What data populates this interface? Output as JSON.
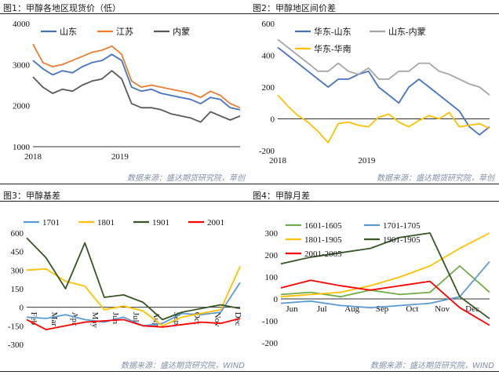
{
  "charts": [
    {
      "title": "图1：甲醇各地区现货价（低）",
      "source": "数据来源：盛达期货研究院，草创"
    },
    {
      "title": "图2：甲醇地区间价差",
      "source": "数据来源：盛达期货研究院，草创"
    },
    {
      "title": "图3：甲醇基差",
      "source": "数据来源：盛达期货研究院，WIND"
    },
    {
      "title": "图4：甲醇月差",
      "source": "数据来源：盛达期货研究院，WIND"
    }
  ],
  "chart_data": [
    {
      "type": "line",
      "title": "图1：甲醇各地区现货价（低）",
      "x_tick_labels": [
        "2018",
        "2019"
      ],
      "ylim": [
        1000,
        4000
      ],
      "y_ticks": [
        1000,
        2000,
        3000,
        4000
      ],
      "legend_position": "top",
      "grid": false,
      "x": [
        0,
        1,
        2,
        3,
        4,
        5,
        6,
        7,
        8,
        9,
        10,
        11,
        12,
        13,
        14,
        15,
        16,
        17,
        18,
        19,
        20,
        21
      ],
      "series": [
        {
          "name": "山东",
          "color": "#4472C4",
          "values": [
            3100,
            2900,
            2750,
            2850,
            2800,
            2950,
            3050,
            3100,
            3250,
            3100,
            2450,
            2350,
            2400,
            2300,
            2250,
            2200,
            2150,
            2050,
            2200,
            2150,
            1950,
            1900
          ]
        },
        {
          "name": "江苏",
          "color": "#ED7D31",
          "values": [
            3500,
            3050,
            2950,
            3000,
            3100,
            3200,
            3300,
            3350,
            3450,
            3250,
            2600,
            2450,
            2500,
            2450,
            2400,
            2350,
            2300,
            2200,
            2350,
            2250,
            2050,
            1950
          ]
        },
        {
          "name": "内蒙",
          "color": "#595959",
          "values": [
            2700,
            2450,
            2300,
            2400,
            2350,
            2500,
            2600,
            2650,
            2850,
            2650,
            2050,
            1950,
            1950,
            1900,
            1800,
            1750,
            1700,
            1600,
            1850,
            1750,
            1650,
            1750
          ]
        }
      ]
    },
    {
      "type": "line",
      "title": "图2：甲醇地区间价差",
      "x_tick_labels": [
        "2018",
        "2019"
      ],
      "ylim": [
        -200,
        600
      ],
      "y_ticks": [
        -200,
        0,
        200,
        400,
        600
      ],
      "legend_position": "top",
      "grid": false,
      "x": [
        0,
        1,
        2,
        3,
        4,
        5,
        6,
        7,
        8,
        9,
        10,
        11,
        12,
        13,
        14,
        15,
        16,
        17,
        18,
        19,
        20,
        21
      ],
      "series": [
        {
          "name": "华东-山东",
          "color": "#4472C4",
          "values": [
            450,
            400,
            350,
            300,
            250,
            200,
            250,
            250,
            280,
            300,
            200,
            150,
            100,
            200,
            250,
            200,
            150,
            100,
            50,
            -50,
            -100,
            -50
          ]
        },
        {
          "name": "山东-内蒙",
          "color": "#A5A5A5",
          "values": [
            500,
            450,
            400,
            350,
            300,
            300,
            350,
            300,
            280,
            320,
            250,
            250,
            300,
            300,
            350,
            350,
            300,
            280,
            250,
            220,
            200,
            150
          ]
        },
        {
          "name": "华东-华南",
          "color": "#FFC000",
          "values": [
            150,
            80,
            20,
            -20,
            -80,
            -150,
            -30,
            -20,
            -40,
            -50,
            10,
            30,
            -20,
            -50,
            -10,
            20,
            0,
            40,
            -50,
            -40,
            -30,
            -60
          ]
        }
      ]
    },
    {
      "type": "line",
      "title": "图3：甲醇基差",
      "x_tick_labels": [
        "Feb",
        "Mar",
        "Apr",
        "May",
        "Jun",
        "Jul",
        "Aug",
        "Sep",
        "Oct",
        "Nov",
        "Dec"
      ],
      "ylim": [
        -300,
        600
      ],
      "y_ticks": [
        -300,
        -150,
        0,
        150,
        300,
        450,
        600
      ],
      "legend_position": "top",
      "grid": false,
      "x": [
        0,
        1,
        2,
        3,
        4,
        5,
        6,
        7,
        8,
        9,
        10,
        11
      ],
      "series": [
        {
          "name": "1701",
          "color": "#5B9BD5",
          "values": [
            -80,
            -90,
            -60,
            -100,
            -120,
            -80,
            -150,
            -130,
            -50,
            -60,
            -40,
            200
          ]
        },
        {
          "name": "1801",
          "color": "#FFC000",
          "values": [
            300,
            310,
            210,
            170,
            -20,
            10,
            -30,
            -150,
            -80,
            -50,
            -20,
            330
          ]
        },
        {
          "name": "1901",
          "color": "#375623",
          "values": [
            560,
            400,
            150,
            520,
            80,
            100,
            40,
            -100,
            -40,
            -10,
            20,
            -10
          ]
        },
        {
          "name": "2001",
          "color": "#FF0000",
          "values": [
            -100,
            -180,
            -150,
            -120,
            -110,
            -100,
            -150,
            -160,
            -140,
            -120,
            -130,
            -90
          ]
        }
      ]
    },
    {
      "type": "line",
      "title": "图4：甲醇月差",
      "x_tick_labels": [
        "Jun",
        "Jul",
        "Aug",
        "Sep",
        "Oct",
        "Nov",
        "Dec"
      ],
      "ylim": [
        -200,
        300
      ],
      "y_ticks": [
        -200,
        -100,
        0,
        100,
        200,
        300
      ],
      "legend_position": "top",
      "grid": false,
      "x": [
        0,
        1,
        2,
        3,
        4,
        5,
        6,
        7
      ],
      "series": [
        {
          "name": "1601-1605",
          "color": "#70AD47",
          "values": [
            20,
            30,
            10,
            40,
            20,
            30,
            150,
            30
          ]
        },
        {
          "name": "1701-1705",
          "color": "#5B9BD5",
          "values": [
            -20,
            -10,
            -30,
            -40,
            -30,
            -20,
            10,
            170
          ]
        },
        {
          "name": "1801-1905",
          "color": "#FFC000",
          "values": [
            10,
            20,
            30,
            60,
            100,
            150,
            230,
            300
          ]
        },
        {
          "name": "1901-1905",
          "color": "#375623",
          "values": [
            160,
            190,
            210,
            230,
            280,
            300,
            10,
            -90
          ]
        },
        {
          "name": "2001-2005",
          "color": "#FF0000",
          "values": [
            50,
            85,
            60,
            40,
            60,
            80,
            -40,
            -120
          ]
        }
      ]
    }
  ]
}
